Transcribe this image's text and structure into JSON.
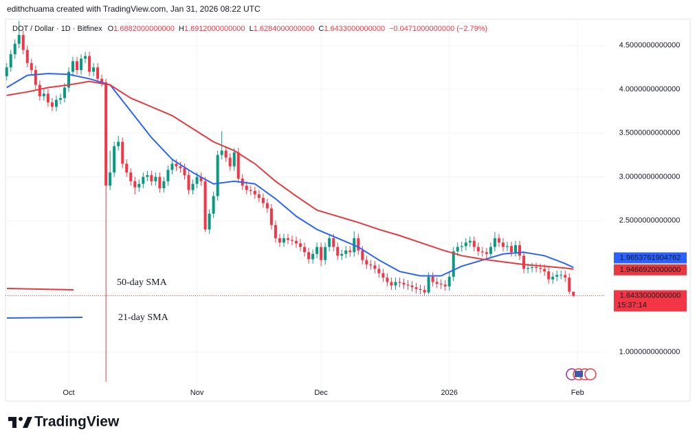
{
  "header": {
    "credit": "edithchuama created with TradingView.com, Jan 31, 2026 08:22 UTC",
    "symbol": "DOT / Dollar · 1D · Bitfinex",
    "ohlc": [
      {
        "key": "O",
        "value": "1.6882000000000"
      },
      {
        "key": "H",
        "value": "1.6912000000000"
      },
      {
        "key": "L",
        "value": "1.6284000000000"
      },
      {
        "key": "C",
        "value": "1.6433000000000"
      }
    ],
    "change": "−0.0471000000000 (−2.79%)"
  },
  "brand": "TradingView",
  "chart_data": {
    "type": "candlestick",
    "up_color": "#089981",
    "down_color": "#f23645",
    "xlim": [
      -0.28,
      144.6
    ],
    "xticks": [
      {
        "value": 15,
        "label": "Oct"
      },
      {
        "value": 46,
        "label": "Nov"
      },
      {
        "value": 76,
        "label": "Dec"
      },
      {
        "value": 107,
        "label": "2026"
      },
      {
        "value": 138,
        "label": "Feb"
      }
    ],
    "ylim": [
      0.44,
      4.8
    ],
    "yticks": [
      {
        "value": 1.0,
        "label": "1.0000000000000"
      },
      {
        "value": 2.5,
        "label": "2.5000000000000"
      },
      {
        "value": 3.0,
        "label": "3.0000000000000"
      },
      {
        "value": 3.5,
        "label": "3.5000000000000"
      },
      {
        "value": 4.0,
        "label": "4.0000000000000"
      },
      {
        "value": 4.5,
        "label": "4.5000000000000"
      }
    ],
    "grid": true,
    "candles": {
      "open": [
        4.15,
        4.25,
        4.4,
        4.52,
        4.62,
        4.45,
        4.3,
        4.22,
        4.05,
        3.92,
        3.95,
        3.85,
        3.8,
        3.88,
        3.9,
        4.02,
        4.2,
        4.32,
        4.22,
        4.35,
        4.38,
        4.2,
        4.25,
        4.12,
        4.08,
        2.9,
        3.05,
        3.35,
        3.4,
        3.15,
        3.05,
        2.95,
        2.88,
        2.92,
        3.0,
        3.02,
        2.95,
        3.0,
        2.87,
        2.95,
        3.08,
        3.15,
        3.12,
        3.1,
        3.02,
        2.85,
        2.92,
        3.0,
        2.95,
        2.4,
        2.58,
        2.78,
        3.25,
        3.3,
        3.22,
        3.12,
        3.28,
        2.98,
        2.9,
        2.85,
        2.84,
        2.8,
        2.76,
        2.7,
        2.64,
        2.45,
        2.3,
        2.25,
        2.3,
        2.28,
        2.27,
        2.24,
        2.2,
        2.14,
        2.06,
        2.12,
        2.2,
        2.05,
        2.2,
        2.3,
        2.2,
        2.1,
        2.12,
        2.16,
        2.14,
        2.3,
        2.16,
        2.05,
        2.0,
        1.99,
        1.95,
        1.9,
        1.85,
        1.8,
        1.76,
        1.8,
        1.79,
        1.77,
        1.76,
        1.74,
        1.72,
        1.71,
        1.68,
        1.86,
        1.8,
        1.78,
        1.77,
        1.75,
        1.86,
        2.15,
        2.2,
        2.21,
        2.25,
        2.27,
        2.2,
        2.15,
        2.14,
        2.12,
        2.2,
        2.3,
        2.25,
        2.2,
        2.21,
        2.14,
        2.22,
        2.1,
        1.95,
        1.96,
        1.97,
        1.96,
        1.95,
        1.92,
        1.83,
        1.86,
        1.88,
        1.88,
        1.85,
        1.6882
      ],
      "high": [
        4.3,
        4.45,
        4.57,
        4.78,
        4.67,
        4.5,
        4.35,
        4.27,
        4.1,
        4.0,
        4.0,
        3.9,
        3.93,
        3.95,
        4.07,
        4.25,
        4.37,
        4.37,
        4.4,
        4.43,
        4.43,
        4.3,
        4.3,
        4.17,
        4.12,
        3.3,
        3.4,
        3.47,
        3.45,
        3.2,
        3.1,
        3.0,
        2.97,
        3.05,
        3.07,
        3.07,
        3.05,
        3.05,
        3.0,
        3.13,
        3.2,
        3.2,
        3.17,
        3.15,
        3.07,
        2.97,
        3.05,
        3.05,
        3.0,
        2.63,
        2.83,
        3.3,
        3.52,
        3.35,
        3.27,
        3.33,
        3.33,
        3.03,
        2.95,
        2.9,
        2.89,
        2.85,
        2.81,
        2.75,
        2.69,
        2.5,
        2.35,
        2.35,
        2.35,
        2.33,
        2.32,
        2.29,
        2.25,
        2.19,
        2.17,
        2.25,
        2.25,
        2.25,
        2.35,
        2.35,
        2.25,
        2.17,
        2.21,
        2.21,
        2.38,
        2.35,
        2.21,
        2.1,
        2.05,
        2.04,
        2.0,
        1.95,
        1.9,
        1.85,
        1.85,
        1.85,
        1.84,
        1.82,
        1.81,
        1.79,
        1.77,
        1.76,
        1.91,
        1.91,
        1.85,
        1.83,
        1.82,
        1.91,
        2.2,
        2.25,
        2.26,
        2.3,
        2.32,
        2.32,
        2.25,
        2.2,
        2.19,
        2.25,
        2.37,
        2.35,
        2.3,
        2.26,
        2.26,
        2.27,
        2.27,
        2.15,
        2.01,
        2.02,
        2.02,
        2.01,
        2.0,
        1.97,
        1.91,
        1.93,
        1.93,
        1.93,
        1.9,
        1.6912
      ],
      "low": [
        4.1,
        4.2,
        4.35,
        4.47,
        4.4,
        4.25,
        4.17,
        4.0,
        3.87,
        3.87,
        3.8,
        3.75,
        3.75,
        3.83,
        3.85,
        3.97,
        4.15,
        4.17,
        4.17,
        4.3,
        4.15,
        4.15,
        4.07,
        4.03,
        0.66,
        2.85,
        3.0,
        3.3,
        3.1,
        3.0,
        2.9,
        2.8,
        2.83,
        2.87,
        2.95,
        2.9,
        2.9,
        2.82,
        2.82,
        2.9,
        3.03,
        3.07,
        3.05,
        2.97,
        2.8,
        2.8,
        2.87,
        2.9,
        2.37,
        2.35,
        2.53,
        2.73,
        3.2,
        3.17,
        3.07,
        3.07,
        2.93,
        2.85,
        2.8,
        2.79,
        2.75,
        2.71,
        2.65,
        2.59,
        2.4,
        2.25,
        2.2,
        2.2,
        2.23,
        2.22,
        2.19,
        2.15,
        2.09,
        2.01,
        2.01,
        2.07,
        1.98,
        2.0,
        2.15,
        2.15,
        2.05,
        2.05,
        2.07,
        2.09,
        2.09,
        2.11,
        2.0,
        1.95,
        1.94,
        1.9,
        1.85,
        1.8,
        1.75,
        1.71,
        1.71,
        1.74,
        1.72,
        1.71,
        1.69,
        1.67,
        1.66,
        1.65,
        1.66,
        1.75,
        1.73,
        1.72,
        1.7,
        1.7,
        1.81,
        2.1,
        2.15,
        2.16,
        2.2,
        2.15,
        2.1,
        2.09,
        2.07,
        2.07,
        2.15,
        2.2,
        2.15,
        2.15,
        2.09,
        2.09,
        2.05,
        1.9,
        1.9,
        1.91,
        1.91,
        1.9,
        1.87,
        1.78,
        1.78,
        1.81,
        1.83,
        1.8,
        1.66,
        1.6284
      ],
      "close": [
        4.25,
        4.4,
        4.52,
        4.62,
        4.45,
        4.3,
        4.22,
        4.05,
        3.92,
        3.95,
        3.85,
        3.8,
        3.88,
        3.9,
        4.02,
        4.2,
        4.32,
        4.22,
        4.35,
        4.38,
        4.2,
        4.25,
        4.12,
        4.08,
        2.9,
        3.05,
        3.35,
        3.4,
        3.15,
        3.05,
        2.95,
        2.88,
        2.92,
        3.0,
        3.02,
        2.95,
        3.0,
        2.87,
        2.95,
        3.08,
        3.15,
        3.12,
        3.1,
        3.02,
        2.85,
        2.92,
        3.0,
        2.95,
        2.4,
        2.58,
        2.78,
        3.25,
        3.3,
        3.22,
        3.12,
        3.28,
        2.98,
        2.9,
        2.85,
        2.84,
        2.8,
        2.76,
        2.7,
        2.64,
        2.45,
        2.3,
        2.25,
        2.3,
        2.28,
        2.27,
        2.24,
        2.2,
        2.14,
        2.06,
        2.12,
        2.2,
        2.05,
        2.2,
        2.3,
        2.2,
        2.1,
        2.12,
        2.16,
        2.14,
        2.3,
        2.16,
        2.05,
        2.0,
        1.99,
        1.95,
        1.9,
        1.85,
        1.8,
        1.76,
        1.8,
        1.79,
        1.77,
        1.76,
        1.74,
        1.72,
        1.71,
        1.68,
        1.86,
        1.8,
        1.78,
        1.77,
        1.75,
        1.86,
        2.15,
        2.2,
        2.21,
        2.25,
        2.27,
        2.2,
        2.15,
        2.14,
        2.12,
        2.2,
        2.3,
        2.25,
        2.2,
        2.21,
        2.14,
        2.22,
        2.1,
        1.95,
        1.96,
        1.97,
        1.96,
        1.95,
        1.92,
        1.83,
        1.86,
        1.88,
        1.88,
        1.85,
        1.69,
        1.6433
      ],
      "last_label": "1.6433000000000",
      "countdown": "15:37:14"
    },
    "series": [
      {
        "name": "21-day SMA",
        "color": "#2962ff",
        "x": [
          0,
          5,
          10,
          15,
          20,
          25,
          30,
          35,
          40,
          45,
          50,
          55,
          60,
          65,
          70,
          75,
          80,
          85,
          90,
          95,
          100,
          105,
          110,
          115,
          120,
          125,
          130,
          135,
          137
        ],
        "values": [
          4.02,
          4.16,
          4.18,
          4.17,
          4.12,
          4.05,
          3.75,
          3.45,
          3.2,
          3.05,
          2.92,
          2.95,
          2.92,
          2.75,
          2.55,
          2.4,
          2.3,
          2.2,
          2.05,
          1.92,
          1.87,
          1.87,
          1.98,
          2.05,
          2.12,
          2.14,
          2.1,
          2.01,
          1.9653761904762
        ]
      },
      {
        "name": "50-day SMA",
        "color": "#e8383d",
        "x": [
          0,
          5,
          10,
          15,
          20,
          25,
          30,
          35,
          40,
          45,
          50,
          55,
          60,
          65,
          70,
          75,
          80,
          85,
          90,
          95,
          100,
          105,
          110,
          115,
          120,
          125,
          130,
          135,
          137
        ],
        "values": [
          3.93,
          3.97,
          4.02,
          4.05,
          4.09,
          4.05,
          3.9,
          3.8,
          3.7,
          3.55,
          3.4,
          3.3,
          3.15,
          2.95,
          2.78,
          2.62,
          2.55,
          2.48,
          2.4,
          2.33,
          2.25,
          2.17,
          2.1,
          2.06,
          2.03,
          2.0,
          1.98,
          1.96,
          1.946692
        ],
        "last_label": "1.9466920000000"
      }
    ]
  }
}
